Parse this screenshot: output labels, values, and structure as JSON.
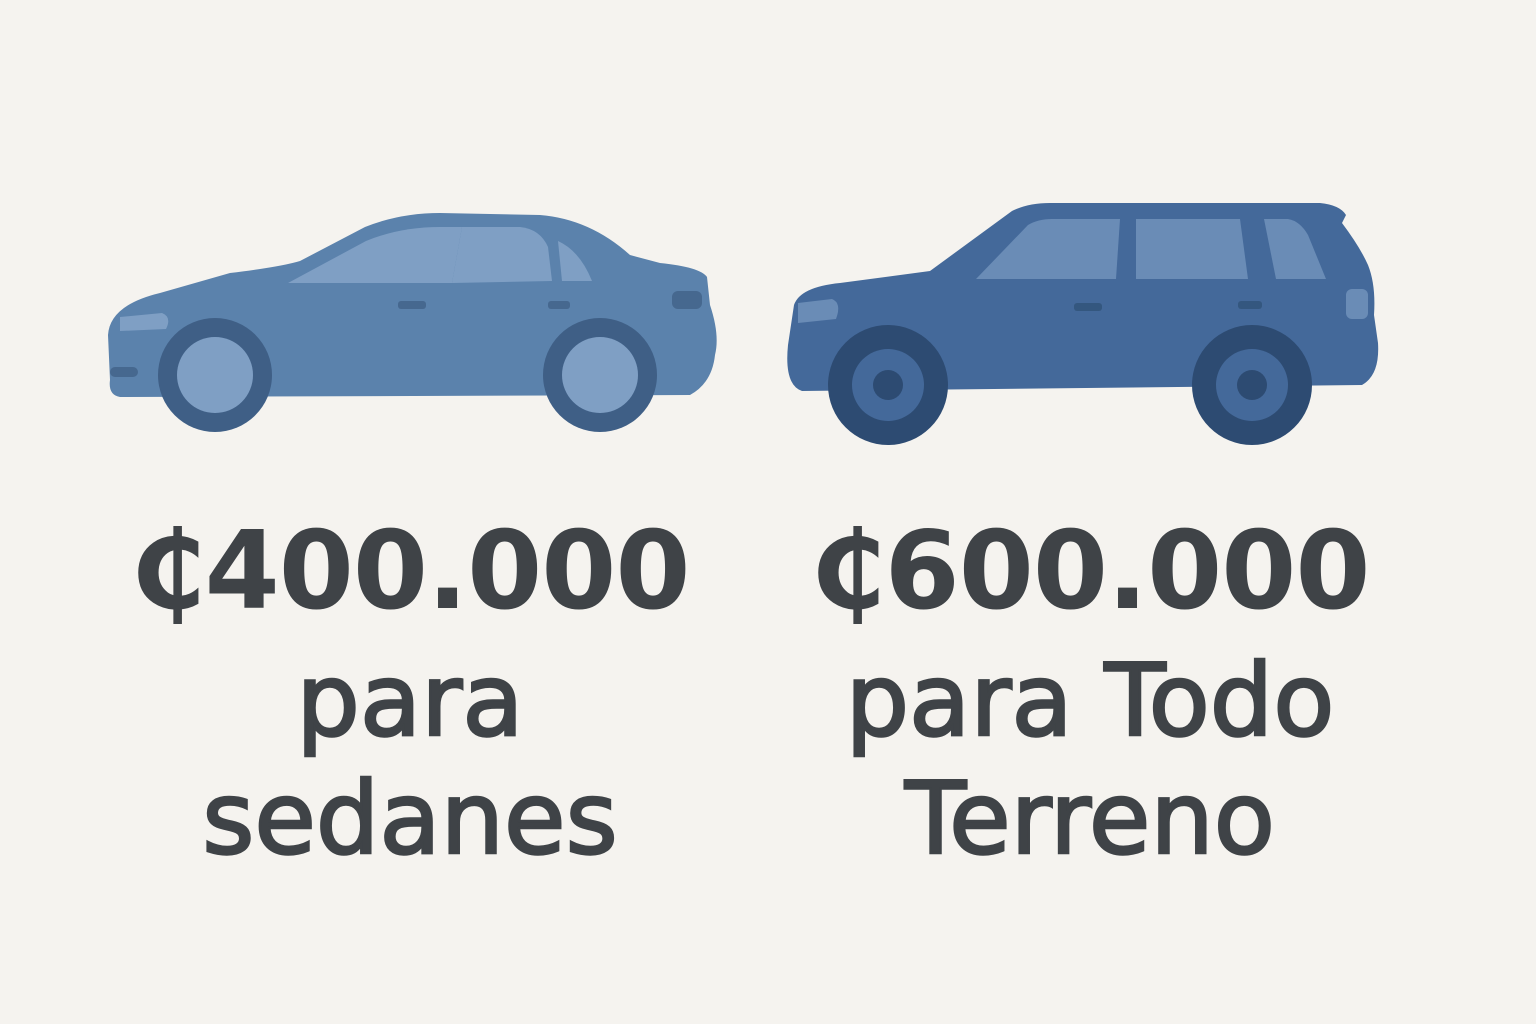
{
  "colors": {
    "background": "#f5f3ef",
    "text": "#3f4347",
    "sedan_body": "#5b82ac",
    "sedan_window": "#7f9fc4",
    "sedan_wheel": "#3f5f86",
    "suv_body": "#44699a",
    "suv_window": "#6a8cb6",
    "suv_wheel": "#2d4b72"
  },
  "sedan": {
    "icon": "sedan-car-icon",
    "price": "₵400.000",
    "line1": "para",
    "line2": "sedanes"
  },
  "suv": {
    "icon": "suv-car-icon",
    "price": "₵600.000",
    "line1": "para Todo",
    "line2": "Terreno"
  }
}
